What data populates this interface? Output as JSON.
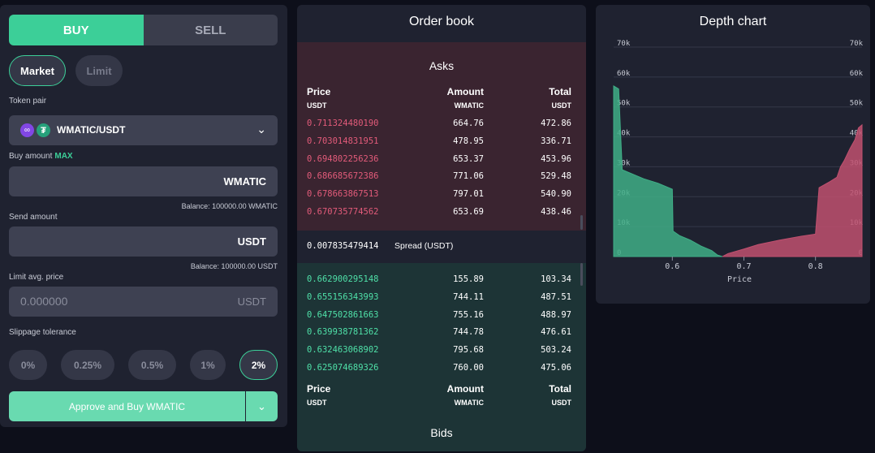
{
  "trade": {
    "buy_label": "BUY",
    "sell_label": "SELL",
    "market_label": "Market",
    "limit_label": "Limit",
    "token_pair_label": "Token pair",
    "token_pair": "WMATIC/USDT",
    "buy_amount_label": "Buy amount",
    "max_label": "MAX",
    "buy_unit": "WMATIC",
    "buy_balance": "Balance: 100000.00 WMATIC",
    "send_amount_label": "Send amount",
    "send_unit": "USDT",
    "send_balance": "Balance: 100000.00 USDT",
    "limit_price_label": "Limit avg. price",
    "limit_price_value": "0.000000",
    "limit_price_unit": "USDT",
    "slippage_label": "Slippage tolerance",
    "slippage_options": [
      "0%",
      "0.25%",
      "0.5%",
      "1%",
      "2%"
    ],
    "slippage_selected": "2%",
    "approve_label": "Approve and Buy WMATIC"
  },
  "orderbook": {
    "title": "Order book",
    "asks_title": "Asks",
    "bids_title": "Bids",
    "col_price": "Price",
    "col_amount": "Amount",
    "col_total": "Total",
    "unit_price": "USDT",
    "unit_amount": "WMATIC",
    "unit_total": "USDT",
    "asks": [
      [
        "0.711324480190",
        "664.76",
        "472.86"
      ],
      [
        "0.703014831951",
        "478.95",
        "336.71"
      ],
      [
        "0.694802256236",
        "653.37",
        "453.96"
      ],
      [
        "0.686685672386",
        "771.06",
        "529.48"
      ],
      [
        "0.678663867513",
        "797.01",
        "540.90"
      ],
      [
        "0.670735774562",
        "653.69",
        "438.46"
      ]
    ],
    "spread_value": "0.007835479414",
    "spread_label": "Spread (USDT)",
    "bids": [
      [
        "0.662900295148",
        "155.89",
        "103.34"
      ],
      [
        "0.655156343993",
        "744.11",
        "487.51"
      ],
      [
        "0.647502861663",
        "755.16",
        "488.97"
      ],
      [
        "0.639938781362",
        "744.78",
        "476.61"
      ],
      [
        "0.632463068902",
        "795.68",
        "503.24"
      ],
      [
        "0.625074689326",
        "760.00",
        "475.06"
      ]
    ]
  },
  "depth": {
    "title": "Depth chart",
    "chart_data": {
      "type": "area",
      "xlabel": "Price",
      "x_ticks": [
        "0.6",
        "0.7",
        "0.8"
      ],
      "y_ticks": [
        "0",
        "10k",
        "20k",
        "30k",
        "40k",
        "50k",
        "60k",
        "70k"
      ],
      "xlim": [
        0.518,
        0.865
      ],
      "ylim": [
        0,
        70000
      ],
      "colors": {
        "bids": "#3fae86",
        "asks": "#c0506f"
      },
      "series": [
        {
          "side": "bids",
          "points": [
            [
              0.518,
              57000
            ],
            [
              0.525,
              56000
            ],
            [
              0.53,
              29000
            ],
            [
              0.56,
              26000
            ],
            [
              0.58,
              24500
            ],
            [
              0.6,
              22500
            ],
            [
              0.601,
              8500
            ],
            [
              0.61,
              7000
            ],
            [
              0.625,
              5500
            ],
            [
              0.64,
              3500
            ],
            [
              0.655,
              2000
            ],
            [
              0.663,
              500
            ],
            [
              0.67,
              0
            ]
          ]
        },
        {
          "side": "asks",
          "points": [
            [
              0.67,
              0
            ],
            [
              0.678,
              1000
            ],
            [
              0.7,
              2500
            ],
            [
              0.72,
              4000
            ],
            [
              0.75,
              5500
            ],
            [
              0.78,
              6800
            ],
            [
              0.8,
              7500
            ],
            [
              0.805,
              23000
            ],
            [
              0.82,
              25000
            ],
            [
              0.83,
              26500
            ],
            [
              0.835,
              30000
            ],
            [
              0.84,
              32000
            ],
            [
              0.848,
              36000
            ],
            [
              0.855,
              39000
            ],
            [
              0.86,
              43000
            ],
            [
              0.865,
              44000
            ]
          ]
        }
      ]
    }
  }
}
